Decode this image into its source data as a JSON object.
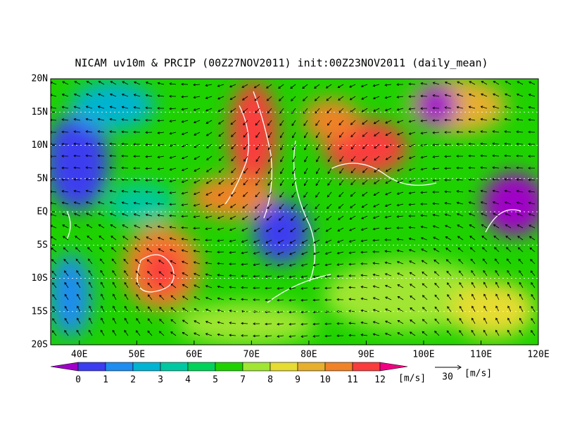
{
  "chart_data": {
    "type": "map",
    "title": "NICAM uv10m & PRCIP (00Z27NOV2011) init:00Z23NOV2011 (daily_mean)",
    "xlim": [
      35,
      120
    ],
    "ylim": [
      -20,
      20
    ],
    "xticks": [
      {
        "value": 40,
        "label": "40E"
      },
      {
        "value": 50,
        "label": "50E"
      },
      {
        "value": 60,
        "label": "60E"
      },
      {
        "value": 70,
        "label": "70E"
      },
      {
        "value": 80,
        "label": "80E"
      },
      {
        "value": 90,
        "label": "90E"
      },
      {
        "value": 100,
        "label": "100E"
      },
      {
        "value": 110,
        "label": "110E"
      },
      {
        "value": 120,
        "label": "120E"
      }
    ],
    "yticks": [
      {
        "value": 20,
        "label": "20N"
      },
      {
        "value": 15,
        "label": "15N"
      },
      {
        "value": 10,
        "label": "10N"
      },
      {
        "value": 5,
        "label": "5N"
      },
      {
        "value": 0,
        "label": "EQ"
      },
      {
        "value": -5,
        "label": "5S"
      },
      {
        "value": -10,
        "label": "10S"
      },
      {
        "value": -15,
        "label": "15S"
      },
      {
        "value": -20,
        "label": "20S"
      }
    ],
    "grid": true,
    "colorbar": {
      "levels": [
        0,
        1,
        2,
        3,
        4,
        5,
        7,
        8,
        9,
        10,
        11,
        12
      ],
      "colors": [
        "#a000c8",
        "#3c3cf0",
        "#1e8cf0",
        "#00b4d2",
        "#00c8a0",
        "#00d25a",
        "#1ed200",
        "#a0e632",
        "#e6dc32",
        "#e6af2d",
        "#f08228",
        "#fa3c3c",
        "#f00082"
      ],
      "unit": "[m/s]"
    },
    "reference_vector": {
      "value": 30,
      "unit": "[m/s]"
    }
  }
}
